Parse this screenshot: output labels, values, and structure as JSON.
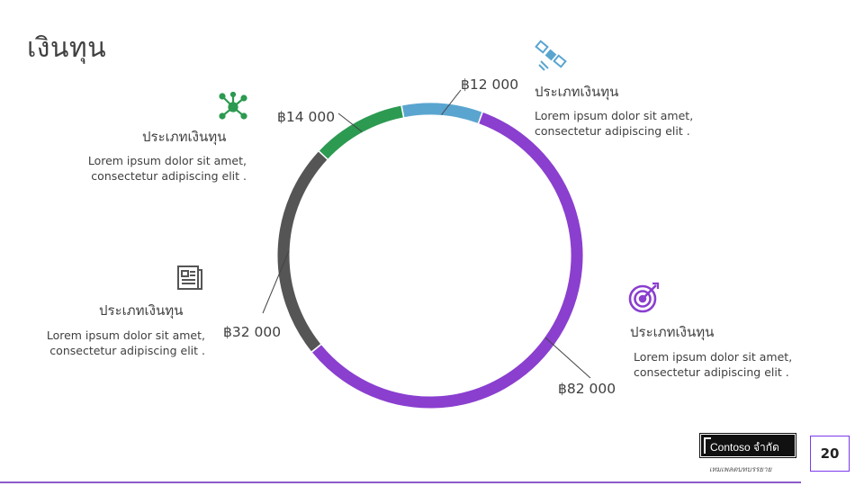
{
  "title": "เงินทุน",
  "chart_data": {
    "type": "pie",
    "variant": "donut",
    "currency_symbol": "฿",
    "slices": [
      {
        "label": "ประเภทเงินทุน",
        "value": 12000,
        "display": "฿12 000",
        "color": "#5aa5d0",
        "icon": "satellite-icon",
        "description": [
          "Lorem ipsum dolor sit amet,",
          "consectetur adipiscing elit ."
        ]
      },
      {
        "label": "ประเภทเงินทุน",
        "value": 82000,
        "display": "฿82 000",
        "color": "#8a3fcf",
        "icon": "target-icon",
        "description": [
          "Lorem ipsum dolor sit amet,",
          "consectetur adipiscing elit ."
        ]
      },
      {
        "label": "ประเภทเงินทุน",
        "value": 32000,
        "display": "฿32 000",
        "color": "#555555",
        "icon": "newspaper-icon",
        "description": [
          "Lorem ipsum dolor sit amet,",
          "consectetur adipiscing elit ."
        ]
      },
      {
        "label": "ประเภทเงินทุน",
        "value": 14000,
        "display": "฿14 000",
        "color": "#2c9a51",
        "icon": "network-icon",
        "description": [
          "Lorem ipsum dolor sit amet,",
          "consectetur adipiscing elit ."
        ]
      }
    ]
  },
  "footer": {
    "logo_text": "Contoso จำกัด",
    "logo_subtitle": "เทมเพลตบทบรรยาย",
    "page_number": "20"
  },
  "colors": {
    "accent": "#8a3fcf",
    "rule": "#8b5cc9"
  }
}
